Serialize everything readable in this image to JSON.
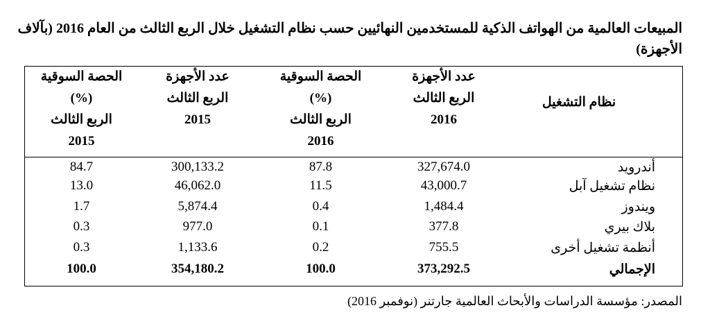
{
  "header": {
    "title": "المبيعات العالمية من الهواتف الذكية للمستخدمين النهائيين حسب نظام التشغيل خلال الربع الثالث من العام 2016 (بآلاف الأجهزة)"
  },
  "table": {
    "columns": [
      [
        "نظام التشغيل"
      ],
      [
        "عدد الأجهزة",
        "الربع الثالث",
        "2016"
      ],
      [
        "الحصة السوقية",
        "(%)",
        "الربع الثالث",
        "2016"
      ],
      [
        "عدد الأجهزة",
        "الربع الثالث",
        "2015"
      ],
      [
        "الحصة السوقية",
        "(%)",
        "الربع الثالث",
        "2015"
      ]
    ],
    "rows": [
      [
        "أندرويد",
        "327,674.0",
        "87.8",
        "300,133.2",
        "84.7"
      ],
      [
        "نظام تشغيل آبل",
        "43,000.7",
        "11.5",
        "46,062.0",
        "13.0"
      ],
      [
        "ويندوز",
        "1,484.4",
        "0.4",
        "5,874.4",
        "1.7"
      ],
      [
        "بلاك بيري",
        "377.8",
        "0.1",
        "977.0",
        "0.3"
      ],
      [
        "أنظمة تشغيل أخرى",
        "755.5",
        "0.2",
        "1,133.6",
        "0.3"
      ],
      [
        "الإجمالي",
        "373,292.5",
        "100.0",
        "354,180.2",
        "100.0"
      ]
    ]
  },
  "footer": {
    "source": "المصدر: مؤسسة الدراسات والأبحاث العالمية جارتنر (نوفمبر 2016)"
  }
}
